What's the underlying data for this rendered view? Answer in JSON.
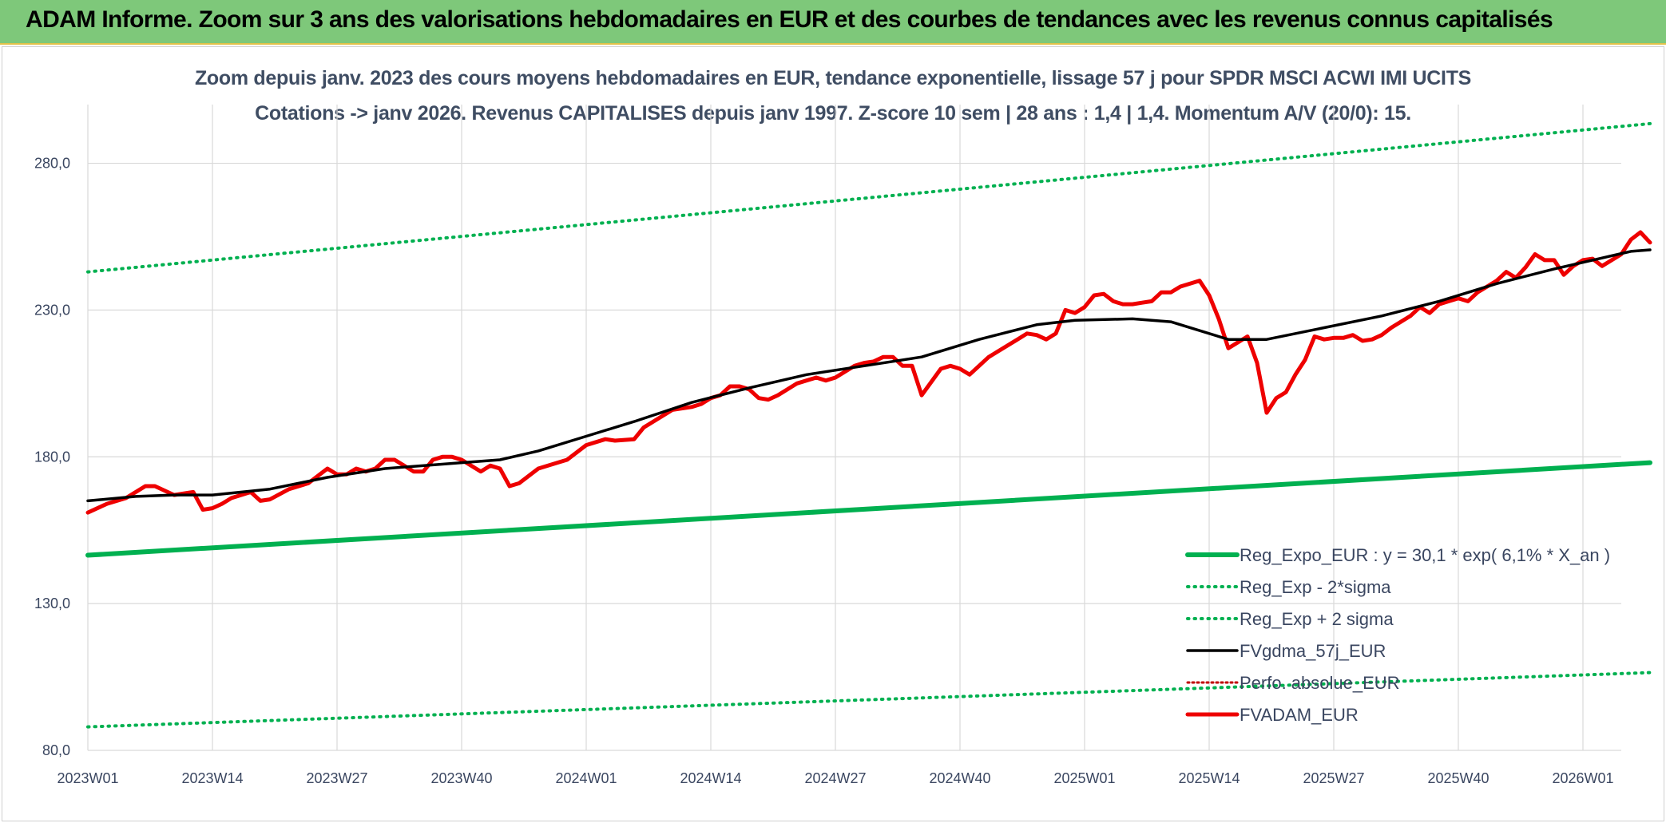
{
  "banner": {
    "title": "ADAM Informe. Zoom sur 3 ans des valorisations hebdomadaires en EUR et des courbes de tendances avec les revenus connus capitalisés"
  },
  "colors": {
    "banner_bg": "#7ec87a",
    "reg_expo": "#00b050",
    "sigma_band": "#00b050",
    "fvgdma": "#000000",
    "perfo": "#c00000",
    "fvadam": "#ee0000",
    "grid": "#d9d9d9",
    "text": "#3a4660"
  },
  "chart_data": {
    "type": "line",
    "title": "Zoom depuis janv. 2023 des cours moyens hebdomadaires en EUR, tendance exponentielle, lissage 57 j pour SPDR MSCI ACWI IMI UCITS",
    "subtitle": "Cotations -> janv 2026. Revenus CAPITALISES depuis janv 1997. Z-score 10 sem | 28 ans : 1,4 | 1,4. Momentum A/V (20/0): 15.",
    "xlabel": "",
    "ylabel": "",
    "ylim": [
      80,
      300
    ],
    "yticks": [
      "80,0",
      "130,0",
      "180,0",
      "230,0",
      "280,0"
    ],
    "xticks": [
      "2023W01",
      "2023W14",
      "2023W27",
      "2023W40",
      "2024W01",
      "2024W14",
      "2024W27",
      "2024W40",
      "2025W01",
      "2025W14",
      "2025W27",
      "2025W40",
      "2026W01"
    ],
    "x_start_week": 1,
    "x_end_week": 164,
    "grid": true,
    "legend_position": "bottom-right",
    "series": [
      {
        "name": "Reg_Expo_EUR : y = 30,1 * exp( 6,1% *  X_an )",
        "style": "solid-thick",
        "points": [
          [
            1,
            146.5
          ],
          [
            164,
            178.0
          ]
        ]
      },
      {
        "name": "Reg_Exp - 2*sigma",
        "style": "dotted",
        "points": [
          [
            1,
            88.0
          ],
          [
            164,
            106.5
          ]
        ]
      },
      {
        "name": "Reg_Exp + 2 sigma",
        "style": "dotted",
        "points": [
          [
            1,
            243.0
          ],
          [
            164,
            293.5
          ]
        ]
      },
      {
        "name": "FVgdma_57j_EUR",
        "style": "solid",
        "points": [
          [
            1,
            165
          ],
          [
            6,
            166.5
          ],
          [
            10,
            167
          ],
          [
            14,
            167
          ],
          [
            20,
            169
          ],
          [
            26,
            173
          ],
          [
            32,
            176
          ],
          [
            40,
            178
          ],
          [
            44,
            179
          ],
          [
            48,
            182
          ],
          [
            53,
            187
          ],
          [
            58,
            192
          ],
          [
            64,
            198.5
          ],
          [
            70,
            203.5
          ],
          [
            76,
            208
          ],
          [
            82,
            211
          ],
          [
            88,
            214
          ],
          [
            94,
            220
          ],
          [
            100,
            225
          ],
          [
            104,
            226.5
          ],
          [
            110,
            227
          ],
          [
            114,
            226
          ],
          [
            120,
            220
          ],
          [
            124,
            220
          ],
          [
            130,
            224
          ],
          [
            136,
            228
          ],
          [
            142,
            233
          ],
          [
            148,
            239
          ],
          [
            154,
            244
          ],
          [
            158,
            247
          ],
          [
            162,
            250
          ],
          [
            164,
            250.5
          ]
        ]
      },
      {
        "name": "Perfo. absolue_EUR",
        "style": "dotted",
        "points": []
      },
      {
        "name": "FVADAM_EUR",
        "style": "solid-thick",
        "points": [
          [
            1,
            161
          ],
          [
            3,
            164
          ],
          [
            5,
            166
          ],
          [
            7,
            170
          ],
          [
            8,
            170
          ],
          [
            10,
            167
          ],
          [
            12,
            168
          ],
          [
            13,
            162
          ],
          [
            14,
            162.5
          ],
          [
            15,
            164
          ],
          [
            16,
            166
          ],
          [
            17,
            167
          ],
          [
            18,
            168
          ],
          [
            19,
            165
          ],
          [
            20,
            165.5
          ],
          [
            22,
            169
          ],
          [
            24,
            171
          ],
          [
            26,
            176
          ],
          [
            27,
            174
          ],
          [
            28,
            174
          ],
          [
            29,
            176
          ],
          [
            30,
            175
          ],
          [
            31,
            176
          ],
          [
            32,
            179
          ],
          [
            33,
            179
          ],
          [
            34,
            177
          ],
          [
            35,
            175
          ],
          [
            36,
            175
          ],
          [
            37,
            179
          ],
          [
            38,
            180
          ],
          [
            39,
            180
          ],
          [
            40,
            179
          ],
          [
            42,
            175
          ],
          [
            43,
            177
          ],
          [
            44,
            176
          ],
          [
            45,
            170
          ],
          [
            46,
            171
          ],
          [
            48,
            176
          ],
          [
            50,
            178
          ],
          [
            51,
            179
          ],
          [
            53,
            184
          ],
          [
            55,
            186
          ],
          [
            56,
            185.5
          ],
          [
            58,
            186
          ],
          [
            59,
            190
          ],
          [
            61,
            194
          ],
          [
            62,
            196
          ],
          [
            64,
            197
          ],
          [
            65,
            198
          ],
          [
            66,
            200
          ],
          [
            67,
            201
          ],
          [
            68,
            204
          ],
          [
            69,
            204
          ],
          [
            70,
            203
          ],
          [
            71,
            200
          ],
          [
            72,
            199.5
          ],
          [
            73,
            201
          ],
          [
            75,
            205
          ],
          [
            77,
            207
          ],
          [
            78,
            206
          ],
          [
            79,
            207
          ],
          [
            81,
            211
          ],
          [
            82,
            212
          ],
          [
            83,
            212.5
          ],
          [
            84,
            214
          ],
          [
            85,
            214
          ],
          [
            86,
            211
          ],
          [
            87,
            211
          ],
          [
            88,
            201
          ],
          [
            90,
            210
          ],
          [
            91,
            211
          ],
          [
            92,
            210
          ],
          [
            93,
            208
          ],
          [
            95,
            214
          ],
          [
            96,
            216
          ],
          [
            98,
            220
          ],
          [
            99,
            222
          ],
          [
            100,
            221.5
          ],
          [
            101,
            220
          ],
          [
            102,
            222
          ],
          [
            103,
            230
          ],
          [
            104,
            229
          ],
          [
            105,
            231
          ],
          [
            106,
            235
          ],
          [
            107,
            235.5
          ],
          [
            108,
            233
          ],
          [
            109,
            232
          ],
          [
            110,
            232
          ],
          [
            111,
            232.5
          ],
          [
            112,
            233
          ],
          [
            113,
            236
          ],
          [
            114,
            236
          ],
          [
            115,
            238
          ],
          [
            117,
            240
          ],
          [
            118,
            235
          ],
          [
            119,
            227
          ],
          [
            120,
            217
          ],
          [
            121,
            219
          ],
          [
            122,
            221
          ],
          [
            123,
            212
          ],
          [
            124,
            195
          ],
          [
            125,
            200
          ],
          [
            126,
            202
          ],
          [
            127,
            208
          ],
          [
            128,
            213
          ],
          [
            129,
            221
          ],
          [
            130,
            220
          ],
          [
            131,
            220.5
          ],
          [
            132,
            220.5
          ],
          [
            133,
            221.5
          ],
          [
            134,
            219.5
          ],
          [
            135,
            220
          ],
          [
            136,
            221.5
          ],
          [
            137,
            224
          ],
          [
            138,
            226
          ],
          [
            139,
            228
          ],
          [
            140,
            231
          ],
          [
            141,
            229
          ],
          [
            142,
            232
          ],
          [
            143,
            233
          ],
          [
            144,
            234
          ],
          [
            145,
            233
          ],
          [
            146,
            236
          ],
          [
            147,
            238
          ],
          [
            148,
            240
          ],
          [
            149,
            243
          ],
          [
            150,
            241
          ],
          [
            151,
            244.5
          ],
          [
            152,
            249
          ],
          [
            153,
            247
          ],
          [
            154,
            247
          ],
          [
            155,
            242
          ],
          [
            156,
            245
          ],
          [
            157,
            247
          ],
          [
            158,
            247.5
          ],
          [
            159,
            245
          ],
          [
            160,
            247
          ],
          [
            161,
            249
          ],
          [
            162,
            254
          ],
          [
            163,
            256.5
          ],
          [
            164,
            253
          ]
        ]
      }
    ]
  }
}
